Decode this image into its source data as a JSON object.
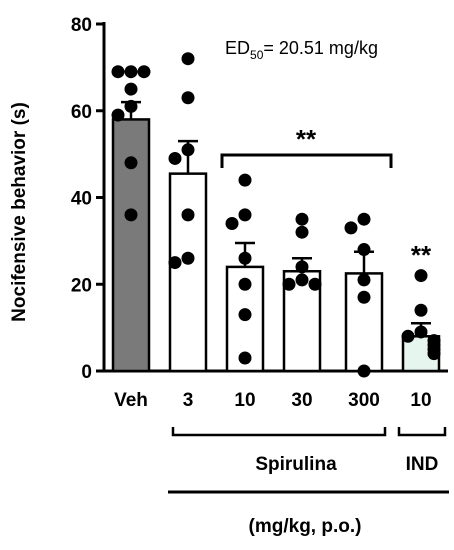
{
  "chart_data": {
    "type": "bar",
    "ylabel": "Nocifensive behavior (s)",
    "ylim": [
      0,
      80
    ],
    "yticks": [
      "0",
      "20",
      "40",
      "60",
      "80"
    ],
    "categories": [
      "Veh",
      "3",
      "10",
      "30",
      "300",
      "10"
    ],
    "bars": [
      {
        "category": "Veh",
        "mean": 58,
        "sem": 4,
        "fill": "#7a7a7a",
        "points": [
          69,
          69,
          69,
          65,
          61,
          59,
          48,
          36
        ]
      },
      {
        "category": "3",
        "mean": 45.5,
        "sem": 7.5,
        "fill": "#ffffff",
        "points": [
          72,
          63,
          51,
          49,
          36,
          26,
          25
        ]
      },
      {
        "category": "10",
        "mean": 24,
        "sem": 5.5,
        "fill": "#ffffff",
        "points": [
          44,
          36,
          34,
          26,
          20,
          13,
          3
        ]
      },
      {
        "category": "30",
        "mean": 23,
        "sem": 3,
        "fill": "#ffffff",
        "points": [
          35,
          32,
          24,
          21,
          20,
          20
        ]
      },
      {
        "category": "300",
        "mean": 22.5,
        "sem": 5,
        "fill": "#ffffff",
        "points": [
          35,
          33,
          28,
          21,
          17,
          0
        ]
      },
      {
        "category": "10",
        "mean": 8,
        "sem": 3,
        "fill": "#e6f6ef",
        "points": [
          22,
          14,
          9,
          8,
          7,
          6,
          5,
          4
        ]
      }
    ],
    "annotations": {
      "ed50_prefix": "ED",
      "ed50_sub": "50",
      "ed50_suffix": "= 20.51 mg/kg",
      "bracket_significance": "**",
      "ind_significance": "**"
    },
    "groups": [
      {
        "label": "Spirulina"
      },
      {
        "label": "IND"
      }
    ],
    "unit_label": "(mg/kg, p.o.)"
  }
}
